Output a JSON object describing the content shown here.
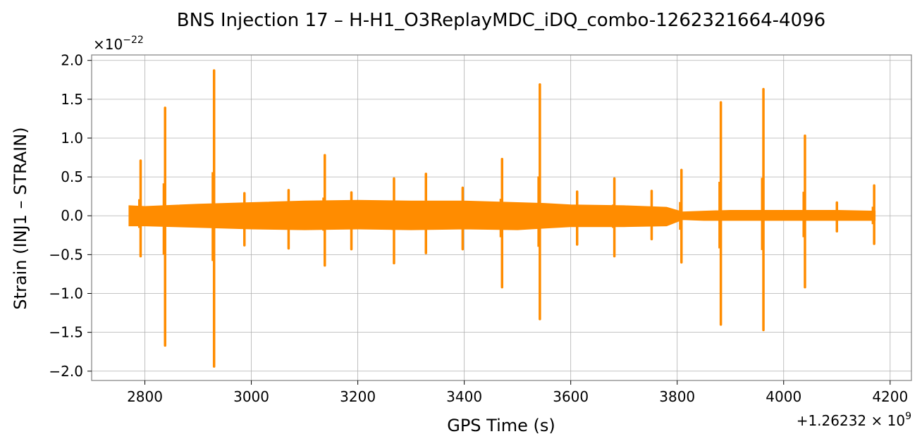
{
  "chart_data": {
    "type": "line",
    "title": "BNS Injection 17 – H-H1_O3ReplayMDC_iDQ_combo-1262321664-4096",
    "xlabel": "GPS Time (s)",
    "ylabel": "Strain (INJ1 – STRAIN)",
    "y_scale_label": "×10",
    "y_scale_exponent": "−22",
    "x_offset_label": "+1.26232 × 10",
    "x_offset_exponent": "9",
    "xlim": [
      2700,
      4240
    ],
    "ylim": [
      -2.12,
      2.07
    ],
    "x_ticks": [
      2800,
      3000,
      3200,
      3400,
      3600,
      3800,
      4000,
      4200
    ],
    "x_tick_labels": [
      "2800",
      "3000",
      "3200",
      "3400",
      "3600",
      "3800",
      "4000",
      "4200"
    ],
    "y_ticks": [
      -2.0,
      -1.5,
      -1.0,
      -0.5,
      0.0,
      0.5,
      1.0,
      1.5,
      2.0
    ],
    "y_tick_labels": [
      "−2.0",
      "−1.5",
      "−1.0",
      "−0.5",
      "0.0",
      "0.5",
      "1.0",
      "1.5",
      "2.0"
    ],
    "grid": true,
    "color": "#ff8c00",
    "series": [
      {
        "name": "",
        "envelope": {
          "x": [
            2770,
            2800,
            2900,
            3000,
            3100,
            3200,
            3300,
            3400,
            3500,
            3550,
            3600,
            3700,
            3780,
            3810,
            3850,
            3900,
            4000,
            4100,
            4172
          ],
          "upper": [
            0.13,
            0.12,
            0.15,
            0.17,
            0.19,
            0.2,
            0.19,
            0.19,
            0.17,
            0.16,
            0.14,
            0.13,
            0.11,
            0.05,
            0.06,
            0.07,
            0.07,
            0.07,
            0.06
          ],
          "lower": [
            -0.13,
            -0.13,
            -0.15,
            -0.17,
            -0.18,
            -0.17,
            -0.18,
            -0.17,
            -0.18,
            -0.16,
            -0.14,
            -0.14,
            -0.13,
            -0.05,
            -0.06,
            -0.06,
            -0.06,
            -0.06,
            -0.06
          ]
        },
        "spikes": [
          {
            "x": 2792,
            "max": 0.71,
            "min": -0.52
          },
          {
            "x": 2838,
            "max": 1.39,
            "min": -1.67
          },
          {
            "x": 2930,
            "max": 1.87,
            "min": -1.94
          },
          {
            "x": 2987,
            "max": 0.29,
            "min": -0.38
          },
          {
            "x": 3070,
            "max": 0.33,
            "min": -0.42
          },
          {
            "x": 3138,
            "max": 0.78,
            "min": -0.64
          },
          {
            "x": 3188,
            "max": 0.3,
            "min": -0.43
          },
          {
            "x": 3268,
            "max": 0.48,
            "min": -0.61
          },
          {
            "x": 3328,
            "max": 0.54,
            "min": -0.48
          },
          {
            "x": 3397,
            "max": 0.36,
            "min": -0.43
          },
          {
            "x": 3471,
            "max": 0.73,
            "min": -0.92
          },
          {
            "x": 3542,
            "max": 1.69,
            "min": -1.33
          },
          {
            "x": 3612,
            "max": 0.31,
            "min": -0.37
          },
          {
            "x": 3682,
            "max": 0.48,
            "min": -0.52
          },
          {
            "x": 3752,
            "max": 0.32,
            "min": -0.3
          },
          {
            "x": 3808,
            "max": 0.59,
            "min": -0.6
          },
          {
            "x": 3882,
            "max": 1.46,
            "min": -1.4
          },
          {
            "x": 3962,
            "max": 1.63,
            "min": -1.47
          },
          {
            "x": 4040,
            "max": 1.03,
            "min": -0.92
          },
          {
            "x": 4100,
            "max": 0.17,
            "min": -0.2
          },
          {
            "x": 4170,
            "max": 0.39,
            "min": -0.36
          }
        ]
      }
    ]
  }
}
